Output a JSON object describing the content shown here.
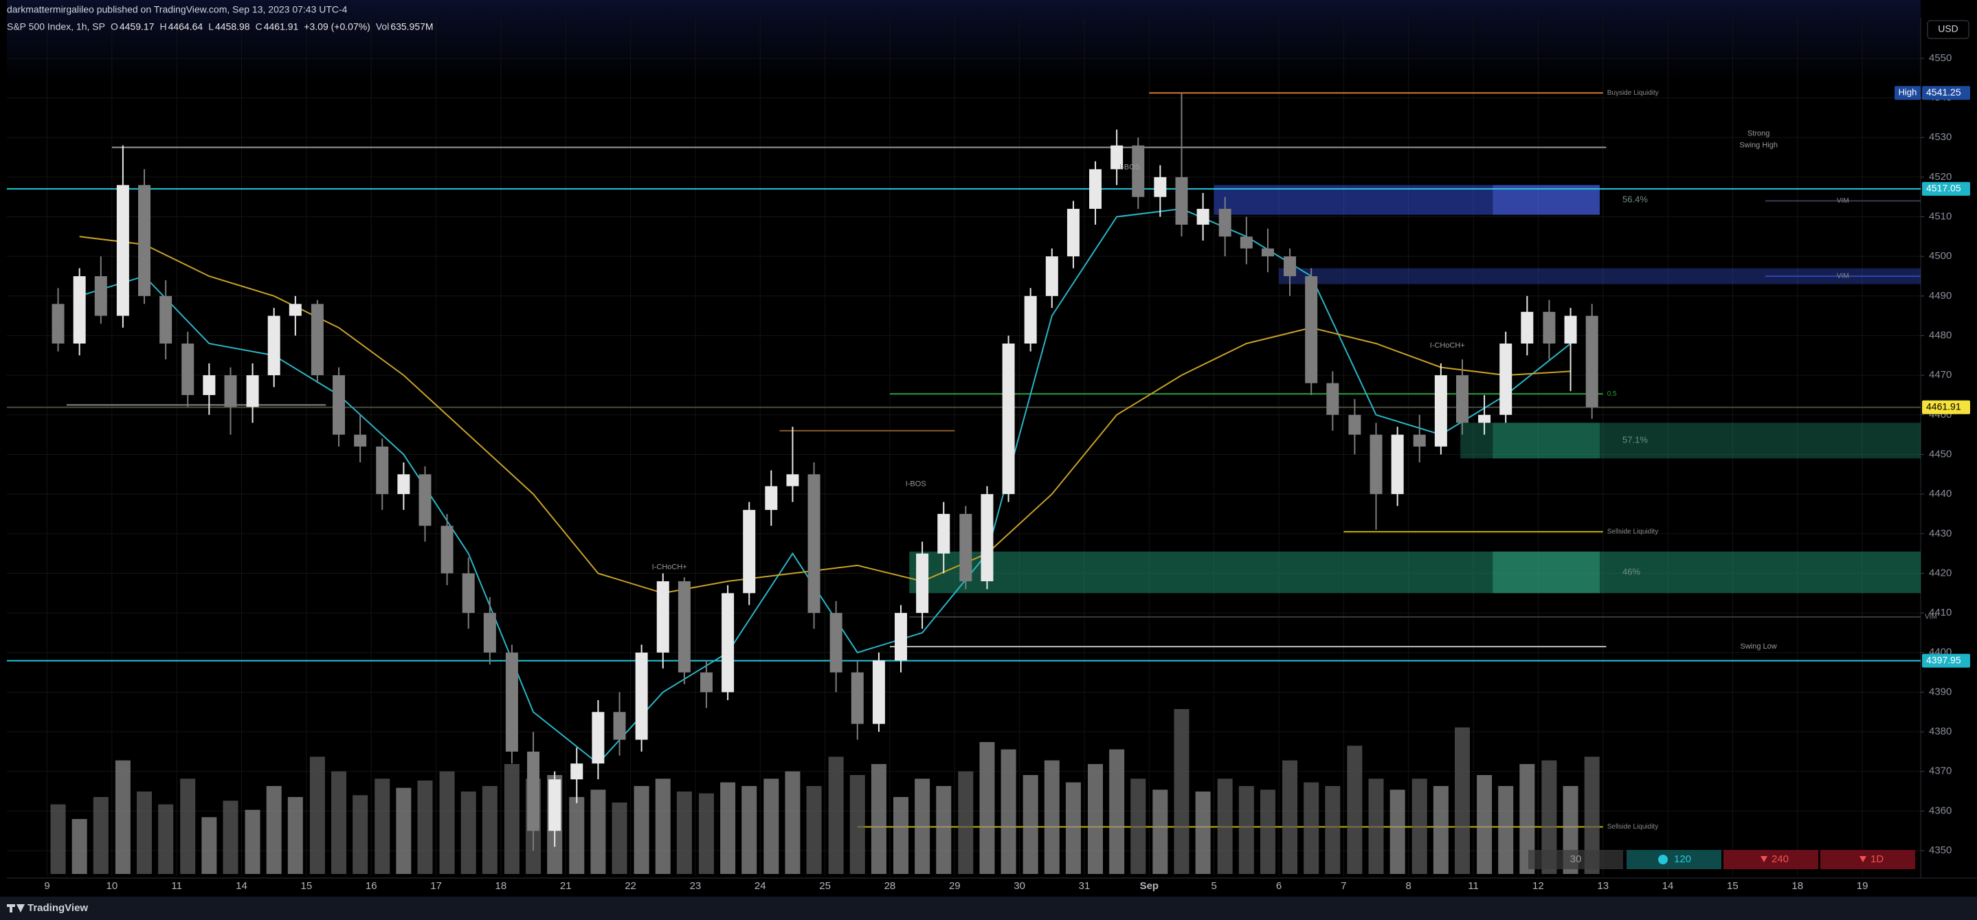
{
  "header": {
    "published": "darkmattermirgalileo published on TradingView.com, Sep 13, 2023 07:43 UTC-4",
    "symbol": "S&P 500 Index, 1h, SP",
    "ohlc": [
      {
        "key": "O",
        "value": 4459.17
      },
      {
        "key": "H",
        "value": 4464.64
      },
      {
        "key": "L",
        "value": 4458.98
      },
      {
        "key": "C",
        "value": 4461.91
      }
    ],
    "change": "+3.09 (+0.07%)",
    "vol_key": "Vol",
    "volume": "635.957M",
    "currency": "USD"
  },
  "toolbar": {
    "buttons": [
      "30",
      "120",
      "240",
      "1D"
    ]
  },
  "footer": "TradingView",
  "chart_data": {
    "type": "candlestick",
    "grid": true,
    "up_color": "#e8e8e8",
    "down_color": "#7c7c7c",
    "volume_color": "#5a5a5a",
    "xlim": [
      -0.62,
      28.9
    ],
    "ylim": [
      4343.6,
      4560.2
    ],
    "xticks": [
      {
        "value": 0,
        "label": "9"
      },
      {
        "value": 1,
        "label": "10"
      },
      {
        "value": 2,
        "label": "11"
      },
      {
        "value": 3,
        "label": "14"
      },
      {
        "value": 4,
        "label": "15"
      },
      {
        "value": 5,
        "label": "16"
      },
      {
        "value": 6,
        "label": "17"
      },
      {
        "value": 7,
        "label": "18"
      },
      {
        "value": 8,
        "label": "21"
      },
      {
        "value": 9,
        "label": "22"
      },
      {
        "value": 10,
        "label": "23"
      },
      {
        "value": 11,
        "label": "24"
      },
      {
        "value": 12,
        "label": "25"
      },
      {
        "value": 13,
        "label": "28"
      },
      {
        "value": 14,
        "label": "29"
      },
      {
        "value": 15,
        "label": "30"
      },
      {
        "value": 16,
        "label": "31"
      },
      {
        "value": 17,
        "label": "Sep"
      },
      {
        "value": 18,
        "label": "5"
      },
      {
        "value": 19,
        "label": "6"
      },
      {
        "value": 20,
        "label": "7"
      },
      {
        "value": 21,
        "label": "8"
      },
      {
        "value": 22,
        "label": "11"
      },
      {
        "value": 23,
        "label": "12"
      },
      {
        "value": 24,
        "label": "13"
      },
      {
        "value": 25,
        "label": "14"
      },
      {
        "value": 26,
        "label": "15"
      },
      {
        "value": 27,
        "label": "18"
      },
      {
        "value": 28,
        "label": "19"
      }
    ],
    "yticks": [
      4350,
      4360,
      4370,
      4380,
      4390,
      4400,
      4410,
      4420,
      4430,
      4440,
      4450,
      4460,
      4470,
      4480,
      4490,
      4500,
      4510,
      4520,
      4530,
      4540,
      4550
    ],
    "candles": {
      "x": [
        0.17,
        0.5,
        0.83,
        1.17,
        1.5,
        1.83,
        2.17,
        2.5,
        2.83,
        3.17,
        3.5,
        3.83,
        4.17,
        4.5,
        4.83,
        5.17,
        5.5,
        5.83,
        6.17,
        6.5,
        6.83,
        7.17,
        7.5,
        7.83,
        8.17,
        8.5,
        8.83,
        9.17,
        9.5,
        9.83,
        10.17,
        10.5,
        10.83,
        11.17,
        11.5,
        11.83,
        12.17,
        12.5,
        12.83,
        13.17,
        13.5,
        13.83,
        14.17,
        14.5,
        14.83,
        15.17,
        15.5,
        15.83,
        16.17,
        16.5,
        16.83,
        17.17,
        17.5,
        17.83,
        18.17,
        18.5,
        18.83,
        19.17,
        19.5,
        19.83,
        20.17,
        20.5,
        20.83,
        21.17,
        21.5,
        21.83,
        22.17,
        22.5,
        22.83,
        23.17,
        23.5,
        23.83
      ],
      "open": [
        4488,
        4478,
        4495,
        4485,
        4518,
        4490,
        4478,
        4465,
        4470,
        4462,
        4470,
        4485,
        4488,
        4470,
        4455,
        4452,
        4440,
        4445,
        4432,
        4420,
        4410,
        4400,
        4375,
        4355,
        4368,
        4372,
        4385,
        4378,
        4400,
        4418,
        4395,
        4390,
        4415,
        4436,
        4442,
        4445,
        4410,
        4395,
        4382,
        4398,
        4410,
        4425,
        4435,
        4418,
        4440,
        4478,
        4490,
        4500,
        4512,
        4522,
        4528,
        4515,
        4520,
        4508,
        4512,
        4505,
        4502,
        4500,
        4495,
        4468,
        4460,
        4455,
        4440,
        4455,
        4452,
        4470,
        4458,
        4460,
        4478,
        4486,
        4478,
        4485
      ],
      "high": [
        4492,
        4497,
        4500,
        4528,
        4522,
        4494,
        4481,
        4473,
        4472,
        4473,
        4487,
        4490,
        4489,
        4472,
        4460,
        4454,
        4448,
        4447,
        4435,
        4424,
        4414,
        4402,
        4380,
        4370,
        4376,
        4388,
        4390,
        4402,
        4420,
        4419,
        4398,
        4417,
        4438,
        4446,
        4457,
        4448,
        4413,
        4398,
        4400,
        4412,
        4428,
        4438,
        4437,
        4442,
        4480,
        4492,
        4502,
        4514,
        4524,
        4532,
        4530,
        4523,
        4541.25,
        4516,
        4515,
        4510,
        4507,
        4502,
        4497,
        4471,
        4464,
        4458,
        4457,
        4460,
        4473,
        4474,
        4465,
        4481,
        4490,
        4489,
        4487,
        4488
      ],
      "low": [
        4476,
        4475,
        4483,
        4482,
        4488,
        4474,
        4462,
        4460,
        4455,
        4458,
        4467,
        4480,
        4468,
        4452,
        4448,
        4436,
        4436,
        4428,
        4417,
        4406,
        4397,
        4372,
        4350,
        4351,
        4362,
        4368,
        4374,
        4375,
        4396,
        4392,
        4386,
        4388,
        4412,
        4432,
        4438,
        4406,
        4390,
        4378,
        4380,
        4395,
        4406,
        4420,
        4416,
        4416,
        4438,
        4476,
        4487,
        4497,
        4508,
        4518,
        4512,
        4510,
        4505,
        4504,
        4500,
        4498,
        4496,
        4490,
        4465,
        4456,
        4450,
        4431,
        4437,
        4448,
        4450,
        4455,
        4455,
        4458,
        4475,
        4474,
        4466,
        4459
      ],
      "close": [
        4478,
        4495,
        4485,
        4518,
        4490,
        4478,
        4465,
        4470,
        4462,
        4470,
        4485,
        4488,
        4470,
        4455,
        4452,
        4440,
        4445,
        4432,
        4420,
        4410,
        4400,
        4375,
        4355,
        4368,
        4372,
        4385,
        4378,
        4400,
        4418,
        4395,
        4390,
        4415,
        4436,
        4442,
        4445,
        4410,
        4395,
        4382,
        4398,
        4410,
        4425,
        4435,
        4418,
        4440,
        4478,
        4490,
        4500,
        4512,
        4522,
        4528,
        4515,
        4520,
        4508,
        4512,
        4505,
        4502,
        4500,
        4495,
        4468,
        4460,
        4455,
        4440,
        4455,
        4452,
        4470,
        4458,
        4460,
        4478,
        4486,
        4478,
        4485,
        4461.91
      ],
      "volume": [
        380,
        300,
        420,
        620,
        450,
        380,
        520,
        310,
        400,
        350,
        480,
        420,
        640,
        560,
        430,
        520,
        470,
        510,
        560,
        450,
        480,
        600,
        520,
        540,
        420,
        460,
        390,
        480,
        520,
        450,
        440,
        500,
        480,
        520,
        560,
        480,
        640,
        540,
        600,
        420,
        520,
        480,
        560,
        720,
        680,
        540,
        620,
        500,
        600,
        680,
        520,
        460,
        900,
        450,
        520,
        480,
        460,
        620,
        500,
        480,
        700,
        520,
        460,
        520,
        480,
        800,
        540,
        480,
        600,
        620,
        480,
        640
      ]
    },
    "averages": [
      {
        "color": "#29b6c8",
        "x": [
          0.5,
          1.5,
          2.5,
          3.5,
          4.5,
          5.5,
          6.5,
          7.5,
          8.5,
          9.5,
          10.5,
          11.5,
          12.5,
          13.5,
          14.5,
          15.5,
          16.5,
          17.5,
          18.5,
          19.5,
          20.5,
          21.5,
          22.5,
          23.5
        ],
        "values": [
          4490,
          4495,
          4478,
          4475,
          4465,
          4450,
          4425,
          4385,
          4372,
          4390,
          4400,
          4425,
          4400,
          4405,
          4425,
          4485,
          4510,
          4512,
          4505,
          4495,
          4460,
          4455,
          4465,
          4478
        ]
      },
      {
        "color": "#c9a227",
        "x": [
          0.5,
          1.5,
          2.5,
          3.5,
          4.5,
          5.5,
          6.5,
          7.5,
          8.5,
          9.5,
          10.5,
          11.5,
          12.5,
          13.5,
          14.5,
          15.5,
          16.5,
          17.5,
          18.5,
          19.5,
          20.5,
          21.5,
          22.5,
          23.5
        ],
        "values": [
          4505,
          4503,
          4495,
          4490,
          4482,
          4470,
          4455,
          4440,
          4420,
          4415,
          4418,
          4420,
          4422,
          4418,
          4425,
          4440,
          4460,
          4470,
          4478,
          4482,
          4478,
          4472,
          4470,
          4471
        ]
      }
    ],
    "zones": [
      {
        "y": [
          4510.5,
          4518
        ],
        "x": [
          18.0,
          23.95
        ],
        "color": "#3d5afe",
        "opacity": 0.45,
        "label": "56.4%"
      },
      {
        "y": [
          4510.5,
          4518
        ],
        "x": [
          22.3,
          23.95
        ],
        "color": "#5c7cff",
        "opacity": 0.35
      },
      {
        "y": [
          4493,
          4497
        ],
        "x": [
          19.0,
          28.9
        ],
        "color": "#2f44b0",
        "opacity": 0.45
      },
      {
        "y": [
          4449,
          4458
        ],
        "x": [
          21.8,
          28.9
        ],
        "color": "#1f8a6a",
        "opacity": 0.4,
        "label": "57.1%"
      },
      {
        "y": [
          4449,
          4458
        ],
        "x": [
          22.3,
          23.95
        ],
        "color": "#2fae88",
        "opacity": 0.3
      },
      {
        "y": [
          4415,
          4425.5
        ],
        "x": [
          13.3,
          28.9
        ],
        "color": "#1f8a6a",
        "opacity": 0.55,
        "label": "46%"
      },
      {
        "y": [
          4415,
          4425.5
        ],
        "x": [
          22.3,
          23.95
        ],
        "color": "#3ec49c",
        "opacity": 0.35
      }
    ],
    "levels": [
      {
        "y": 4541.25,
        "x": [
          17.0,
          24.0
        ],
        "color": "#d07a3a",
        "label": "Buyside  Liquidity"
      },
      {
        "y": 4527.5,
        "x": [
          1.0,
          24.05
        ],
        "color": "#9a9a9a"
      },
      {
        "y": 4517.05,
        "color": "#26c6da"
      },
      {
        "y": 4514,
        "x": [
          26.5,
          28.9
        ],
        "color": "#3a3a5a",
        "label": "VIM"
      },
      {
        "y": 4495,
        "x": [
          26.5,
          28.9
        ],
        "color": "#2f44b0",
        "label": "VIM"
      },
      {
        "y": 4465.3,
        "x": [
          13.0,
          24.0
        ],
        "color": "#2e9d3e",
        "label": "0.5"
      },
      {
        "y": 4462.5,
        "x": [
          0.3,
          4.3
        ],
        "color": "#8a8a8a"
      },
      {
        "y": 4461.91,
        "color": "#4a4a3a"
      },
      {
        "y": 4456,
        "x": [
          11.3,
          14.0
        ],
        "color": "#8a5a2a"
      },
      {
        "y": 4430.5,
        "x": [
          20.0,
          24.0
        ],
        "color": "#c9b300",
        "label": "Sellside  Liquidity"
      },
      {
        "y": 4409,
        "x": [
          13.3,
          28.9
        ],
        "color": "#3a3a3a",
        "label": "VIM"
      },
      {
        "y": 4401.5,
        "x": [
          13.0,
          24.05
        ],
        "color": "#bdbdbd"
      },
      {
        "y": 4397.95,
        "color": "#26c6da"
      },
      {
        "y": 4356,
        "x": [
          12.5,
          24.0
        ],
        "color": "#c9b300",
        "label": "Sellside  Liquidity"
      }
    ],
    "annotations": [
      {
        "text": "Strong",
        "x": 26.4,
        "y": 4531
      },
      {
        "text": "Swing High",
        "x": 26.4,
        "y": 4528
      },
      {
        "text": "Swing Low",
        "x": 26.4,
        "y": 4401.5
      },
      {
        "text": "I-BOS",
        "x": 16.7,
        "y": 4522.5
      },
      {
        "text": "I-BOS",
        "x": 13.4,
        "y": 4442.5
      },
      {
        "text": "I-CHoCH+",
        "x": 9.6,
        "y": 4421.5
      },
      {
        "text": "I-CHoCH+",
        "x": 21.6,
        "y": 4477.5
      }
    ],
    "price_labels": [
      {
        "value": 4541.25,
        "tag": "High",
        "color": "#1e4a9e"
      },
      {
        "value": 4517.05,
        "color": "#1fb5c9"
      },
      {
        "value": 4461.91,
        "color": "#f5e23a"
      },
      {
        "value": 4397.95,
        "color": "#1fb5c9"
      }
    ]
  }
}
